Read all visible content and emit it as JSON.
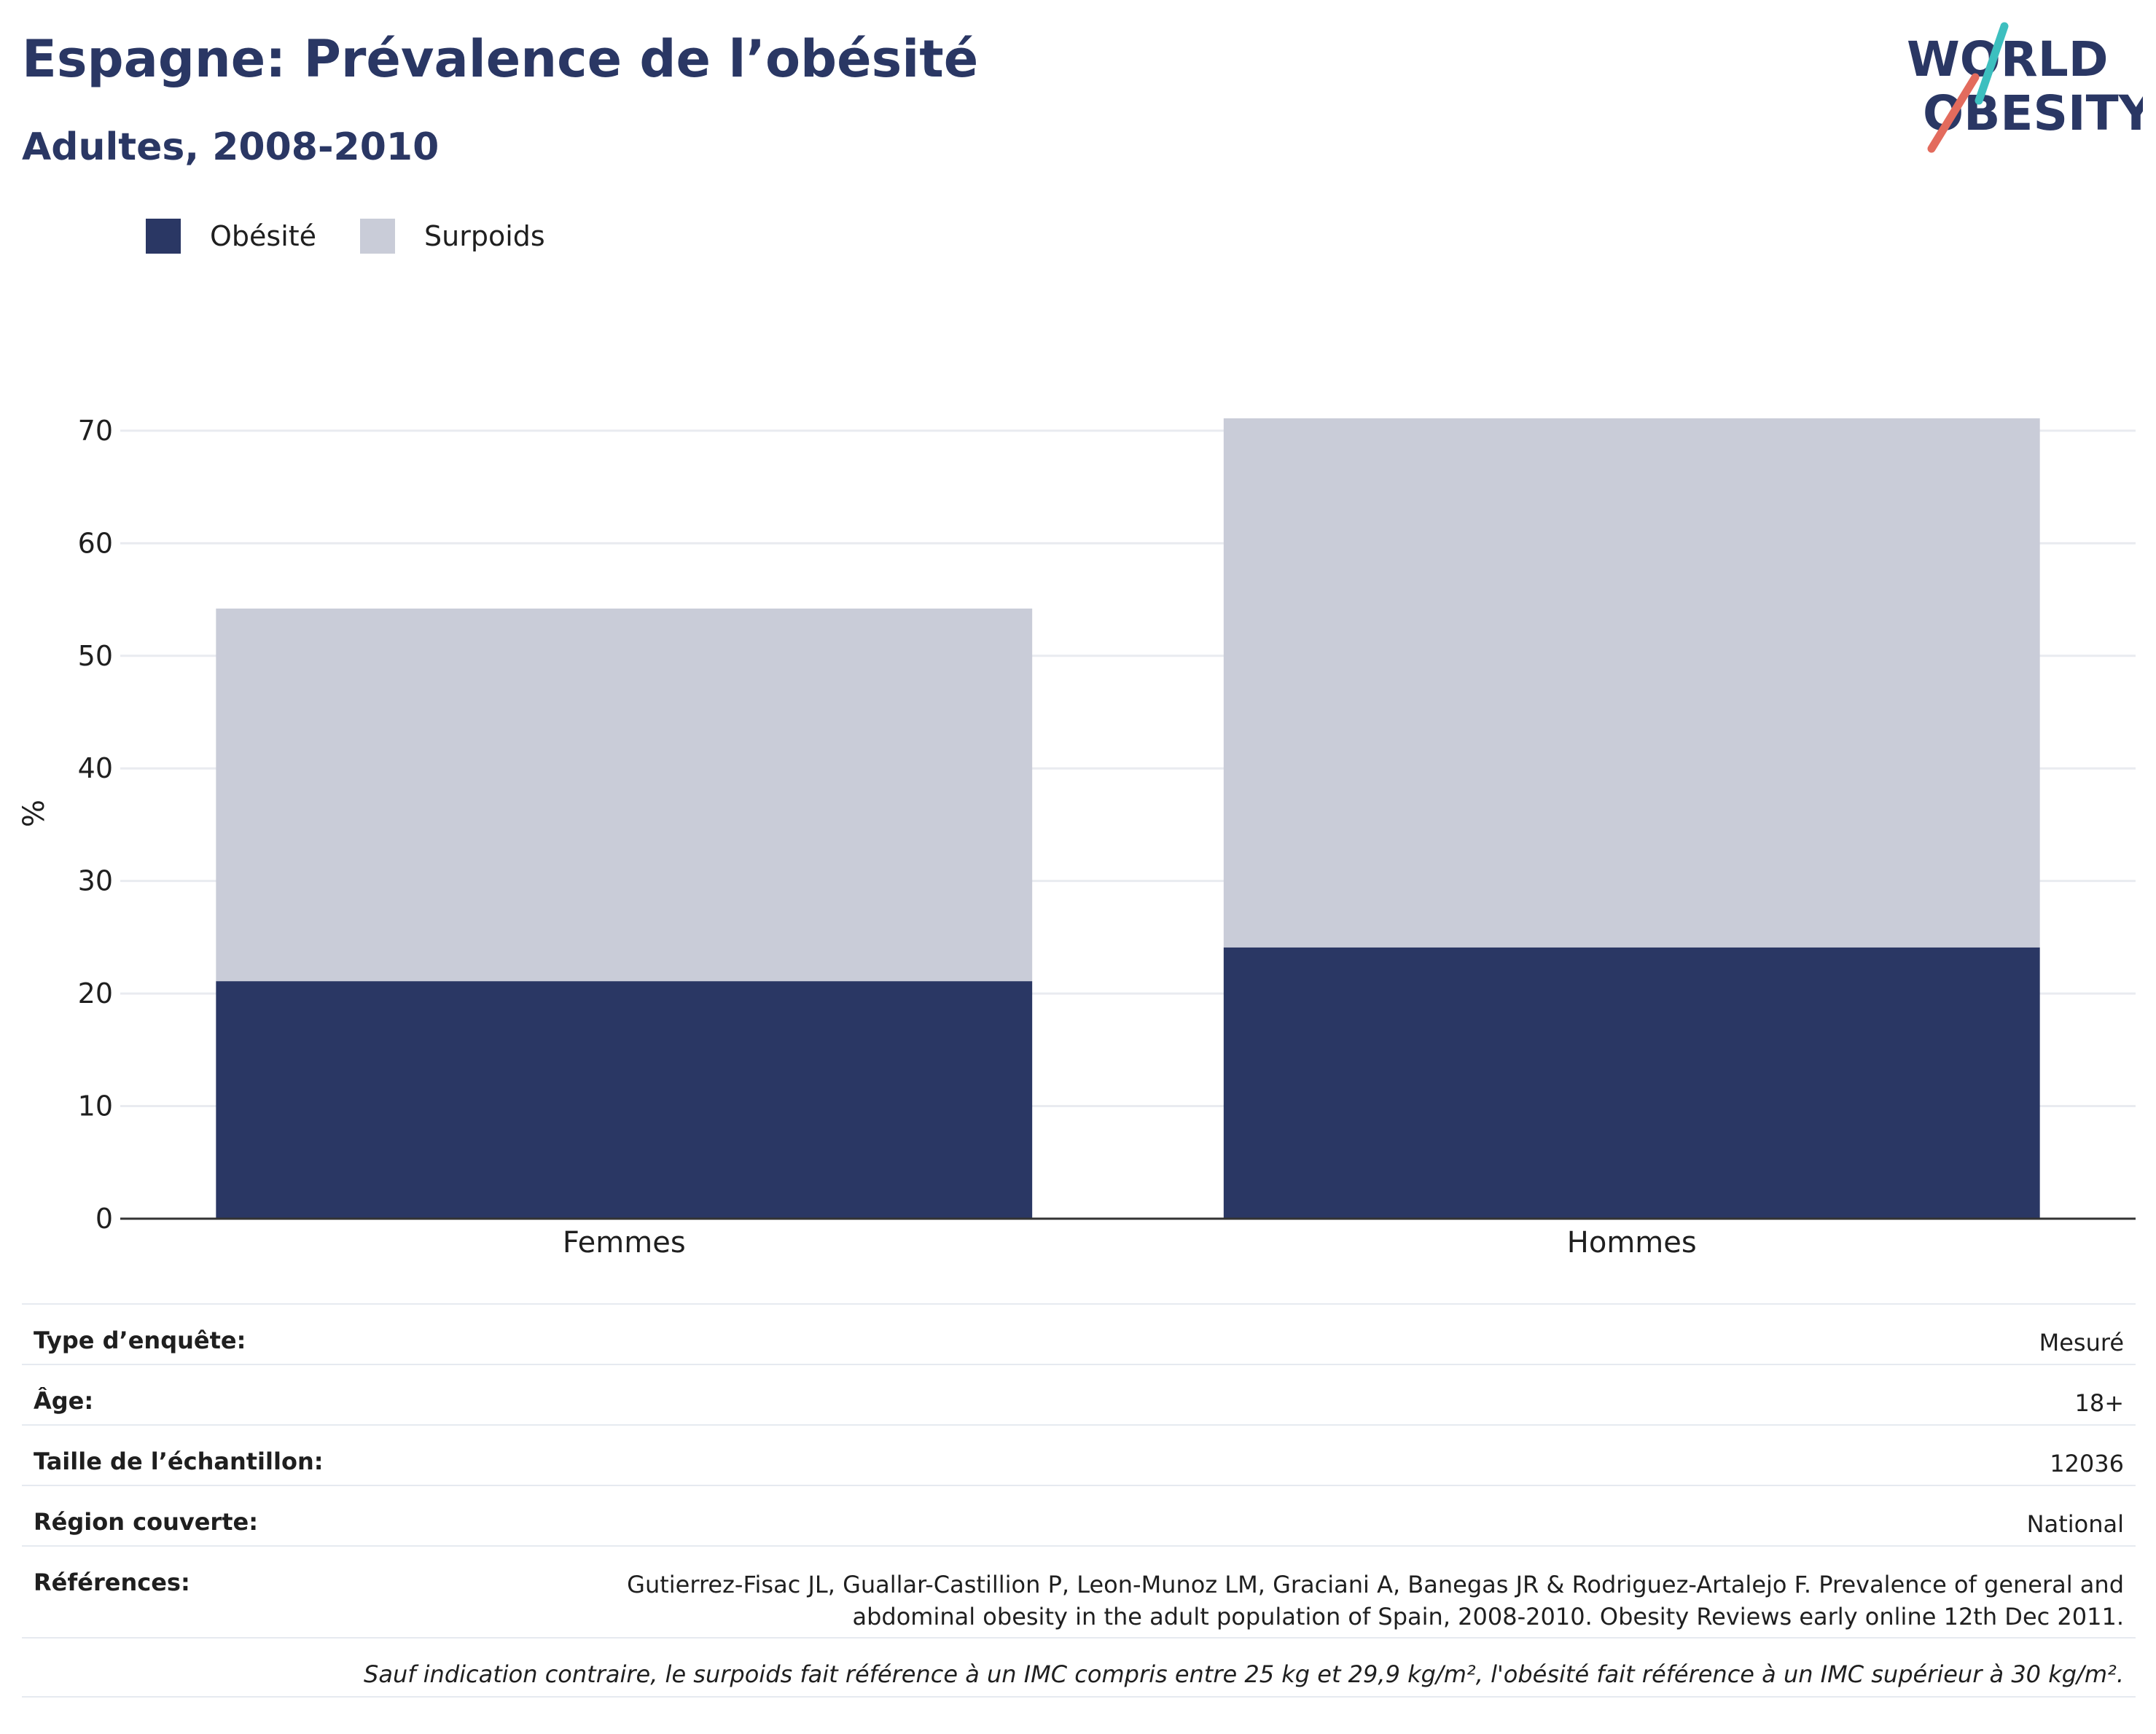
{
  "header": {
    "title": "Espagne: Prévalence de l’obésité",
    "subtitle": "Adultes, 2008-2010"
  },
  "logo": {
    "line1": "WORLD",
    "line2": "OBESITY",
    "slash_colors": [
      "#3dbfbf",
      "#e36b5d"
    ]
  },
  "legend": [
    {
      "label": "Obésité",
      "color": "#2a3764"
    },
    {
      "label": "Surpoids",
      "color": "#c9ccd8"
    }
  ],
  "chart_data": {
    "type": "bar",
    "stacked": true,
    "categories": [
      "Femmes",
      "Hommes"
    ],
    "series": [
      {
        "name": "Obésité",
        "color": "#2a3764",
        "values": [
          21.1,
          24.1
        ]
      },
      {
        "name": "Surpoids",
        "color": "#c9ccd8",
        "values": [
          33.1,
          47.0
        ]
      }
    ],
    "title": "Espagne: Prévalence de l’obésité",
    "subtitle": "Adultes, 2008-2010",
    "xlabel": "",
    "ylabel": "%",
    "ylim": [
      0,
      72
    ],
    "yticks": [
      0,
      10,
      20,
      30,
      40,
      50,
      60,
      70
    ],
    "grid": true,
    "legend_position": "top-left"
  },
  "info": {
    "survey_type": {
      "label": "Type d’enquête:",
      "value": "Mesuré"
    },
    "age": {
      "label": "Âge:",
      "value": "18+"
    },
    "sample_size": {
      "label": "Taille de l’échantillon:",
      "value": "12036"
    },
    "region": {
      "label": "Région couverte:",
      "value": "National"
    },
    "references": {
      "label": "Références:",
      "value": "Gutierrez-Fisac JL, Guallar-Castillion P, Leon-Munoz LM, Graciani A, Banegas JR & Rodriguez-Artalejo F. Prevalence of general and abdominal obesity in the adult population of Spain, 2008-2010. Obesity Reviews early online 12th Dec 2011."
    },
    "note": "Sauf indication contraire, le surpoids fait référence à un IMC compris entre 25 kg et 29,9 kg/m², l'obésité fait référence à un IMC supérieur à 30 kg/m²."
  }
}
